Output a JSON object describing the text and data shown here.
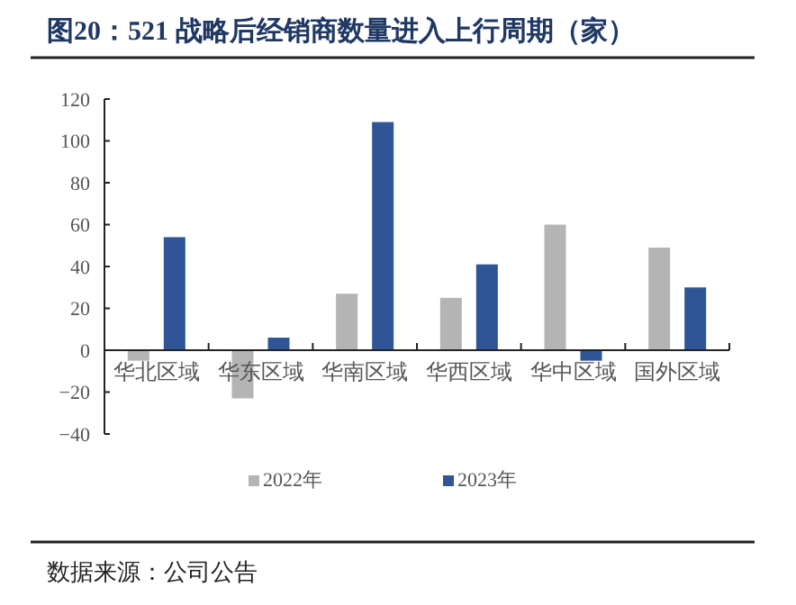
{
  "chart_data": {
    "type": "bar",
    "title": "图20：521 战略后经销商数量进入上行周期（家）",
    "categories": [
      "华北区域",
      "华东区域",
      "华南区域",
      "华西区域",
      "华中区域",
      "国外区域"
    ],
    "series": [
      {
        "name": "2022年",
        "color": "#b4b4b4",
        "values": [
          -5,
          -23,
          27,
          25,
          60,
          49
        ]
      },
      {
        "name": "2023年",
        "color": "#2f5597",
        "values": [
          54,
          6,
          109,
          41,
          -5,
          30
        ]
      }
    ],
    "ylim": [
      -40,
      120
    ],
    "yticks": [
      -40,
      -20,
      0,
      20,
      40,
      60,
      80,
      100,
      120
    ],
    "grid": false,
    "legend": "bottom",
    "annotations": [
      "数据来源：公司公告"
    ]
  }
}
